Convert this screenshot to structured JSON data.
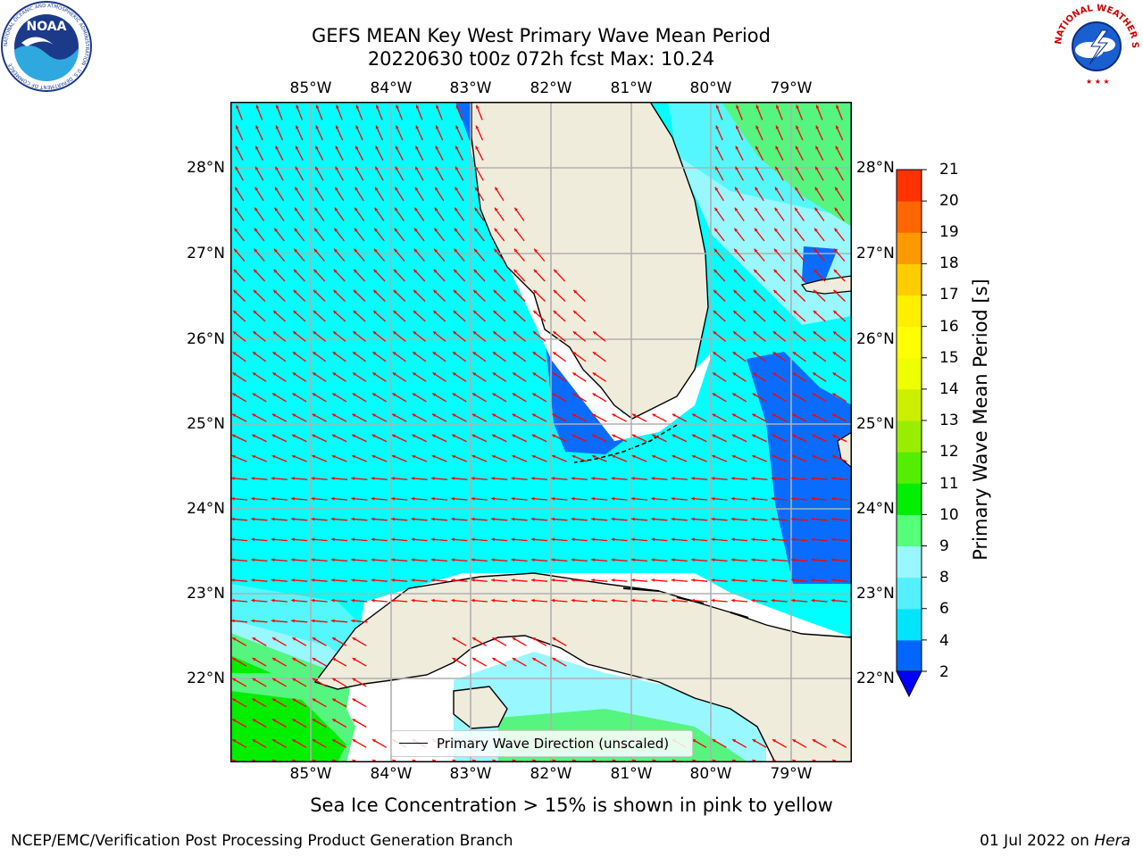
{
  "title": {
    "line1": "GEFS MEAN Key West Primary Wave Mean Period",
    "line2": "20220630 t00z 072h fcst   Max: 10.24"
  },
  "map": {
    "lon_labels": [
      "85°W",
      "84°W",
      "83°W",
      "82°W",
      "81°W",
      "80°W",
      "79°W"
    ],
    "lat_labels": [
      "28°N",
      "27°N",
      "26°N",
      "25°N",
      "24°N",
      "23°N",
      "22°N"
    ],
    "extent": {
      "lon": [
        -86.0,
        -78.25
      ],
      "lat": [
        21.05,
        28.75
      ]
    },
    "gridlines": true,
    "land_color": "#efecdc",
    "arrow_color": "#ff0000",
    "legend": "Primary Wave Direction (unscaled)"
  },
  "colorbar": {
    "label": "Primary Wave Mean Period [s]",
    "ticks": [
      "2",
      "4",
      "6",
      "8",
      "9",
      "10",
      "11",
      "12",
      "13",
      "14",
      "15",
      "16",
      "17",
      "18",
      "19",
      "20",
      "21"
    ],
    "colors": [
      "#0066ff",
      "#00e5ff",
      "#55f0ff",
      "#99f7ff",
      "#55ff77",
      "#00ee00",
      "#55ee00",
      "#99ee00",
      "#ccee00",
      "#eeff00",
      "#ffff00",
      "#ffee00",
      "#ffcc00",
      "#ff9900",
      "#ff6600",
      "#ff3300"
    ],
    "extend_color": "#0000ff"
  },
  "subtitle": "Sea Ice Concentration > 15% is shown in pink to yellow",
  "footer": {
    "left": "NCEP/EMC/Verification Post Processing Product Generation Branch",
    "date": "01 Jul 2022 on ",
    "host": "Hera"
  },
  "logos": {
    "noaa_text": "NOAA",
    "noaa_ring": "NATIONAL OCEANIC AND ATMOSPHERIC ADMINISTRATION · U.S. DEPARTMENT OF COMMERCE",
    "nws_ring": "NATIONAL WEATHER SERVICE"
  }
}
